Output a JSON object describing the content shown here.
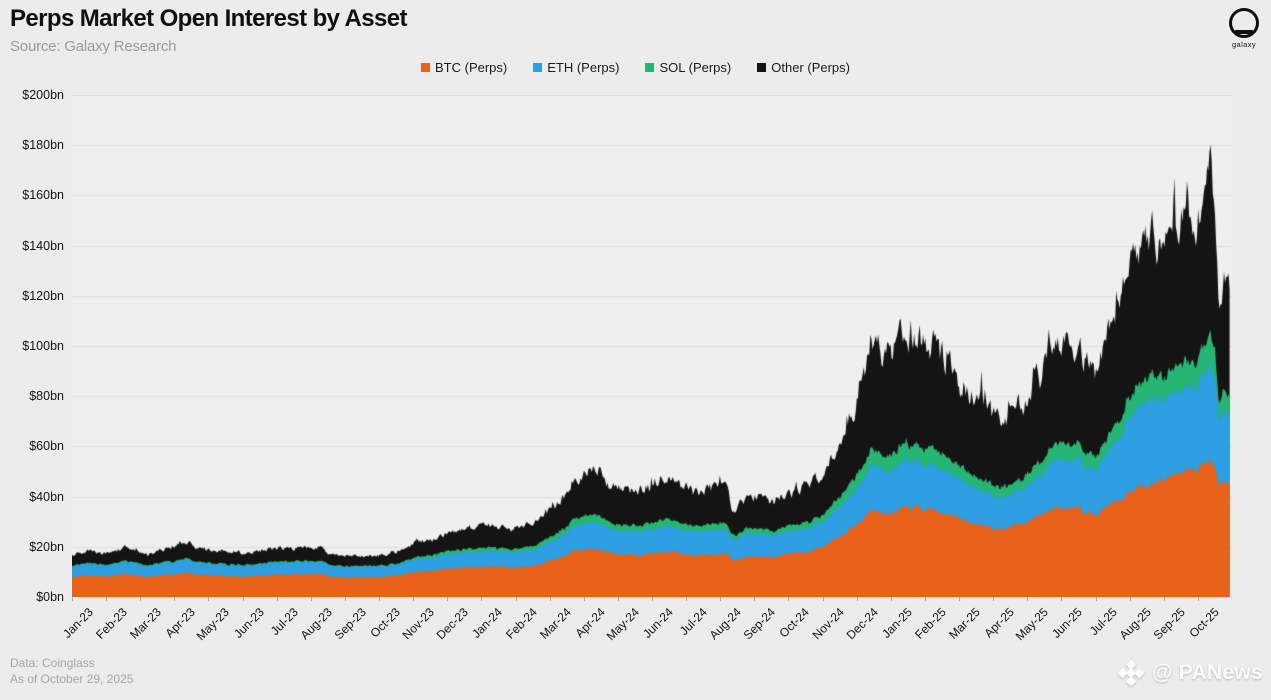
{
  "header": {
    "title": "Perps Market Open Interest by Asset",
    "source": "Source: Galaxy Research",
    "logo_label": "galaxy"
  },
  "footer": {
    "data_source": "Data: Coinglass",
    "as_of": "As of October 29, 2025"
  },
  "watermark": {
    "label": "@ PANews"
  },
  "chart_data": {
    "type": "area",
    "stacked": true,
    "title": "Perps Market Open Interest by Asset",
    "unit": "$bn",
    "ylim": [
      0,
      200
    ],
    "grid": "horizontal",
    "legend_position": "top",
    "y_tick_labels": [
      "$0bn",
      "$20bn",
      "$40bn",
      "$60bn",
      "$80bn",
      "$100bn",
      "$120bn",
      "$140bn",
      "$160bn",
      "$180bn",
      "$200bn"
    ],
    "x_tick_labels": [
      "Jan-23",
      "Feb-23",
      "Mar-23",
      "Apr-23",
      "May-23",
      "Jun-23",
      "Jul-23",
      "Aug-23",
      "Sep-23",
      "Oct-23",
      "Nov-23",
      "Dec-23",
      "Jan-24",
      "Feb-24",
      "Mar-24",
      "Apr-24",
      "May-24",
      "Jun-24",
      "Jul-24",
      "Aug-24",
      "Sep-24",
      "Oct-24",
      "Nov-24",
      "Dec-24",
      "Jan-25",
      "Feb-25",
      "Mar-25",
      "Apr-25",
      "May-25",
      "Jun-25",
      "Jul-25",
      "Aug-25",
      "Sep-25",
      "Oct-25"
    ],
    "sampling": "daily (values in $bn, anchors are months since Jan-2023, ending Oct 29 2025)",
    "anchors_x_months": [
      0,
      0.5,
      1.0,
      1.6,
      2.2,
      2.7,
      3.3,
      3.9,
      4.6,
      5.3,
      5.9,
      6.6,
      7.3,
      7.6,
      8.3,
      9.0,
      9.6,
      10.0,
      10.6,
      11.3,
      11.9,
      12.35,
      12.9,
      13.6,
      14.3,
      14.8,
      15.3,
      15.8,
      16.4,
      17.1,
      17.5,
      18.2,
      18.8,
      19.15,
      19.35,
      19.9,
      20.6,
      21.3,
      21.9,
      22.4,
      22.9,
      23.4,
      23.9,
      24.5,
      25.0,
      25.5,
      26.0,
      26.6,
      27.2,
      27.8,
      28.4,
      28.9,
      29.5,
      30.0,
      30.5,
      31.0,
      31.5,
      32.0,
      32.5,
      33.0,
      33.35,
      33.5,
      33.62,
      33.75,
      33.93
    ],
    "series": [
      {
        "name": "BTC (Perps)",
        "color": "#e8621a",
        "values": [
          8.0,
          8.6,
          8.3,
          9.0,
          8.0,
          8.7,
          9.6,
          8.9,
          8.4,
          8.1,
          8.8,
          9.1,
          9.3,
          7.9,
          7.9,
          8.1,
          8.7,
          9.9,
          10.6,
          11.6,
          11.9,
          12.3,
          11.6,
          12.7,
          15.6,
          18.6,
          19.2,
          17.1,
          16.6,
          17.6,
          18.6,
          16.6,
          17.1,
          17.6,
          14.6,
          16.1,
          15.9,
          17.6,
          19.6,
          23.1,
          28.1,
          34.0,
          33.0,
          36.0,
          35.0,
          34.0,
          31.0,
          29.0,
          27.0,
          29.0,
          33.0,
          36.0,
          35.0,
          33.0,
          37.0,
          42.0,
          44.0,
          46.0,
          50.0,
          50.0,
          55.0,
          53.0,
          44.0,
          48.0,
          46.0
        ]
      },
      {
        "name": "ETH (Perps)",
        "color": "#2d9fe2",
        "values": [
          4.2,
          4.5,
          4.4,
          4.7,
          4.3,
          4.7,
          5.1,
          4.7,
          4.4,
          4.3,
          4.6,
          4.7,
          4.8,
          4.1,
          4.0,
          4.1,
          4.3,
          4.8,
          5.2,
          5.7,
          5.9,
          6.1,
          5.8,
          6.6,
          8.1,
          10.1,
          10.6,
          9.3,
          9.1,
          9.7,
          10.3,
          9.2,
          9.6,
          10.0,
          8.1,
          9.1,
          8.7,
          9.3,
          9.9,
          11.1,
          13.6,
          18.0,
          17.0,
          19.0,
          18.0,
          17.5,
          15.5,
          14.0,
          12.5,
          13.5,
          16.0,
          19.0,
          19.5,
          18.0,
          22.0,
          30.0,
          34.0,
          32.0,
          34.0,
          33.0,
          38.0,
          36.0,
          26.0,
          30.0,
          28.0
        ]
      },
      {
        "name": "SOL (Perps)",
        "color": "#25b673",
        "values": [
          0.3,
          0.4,
          0.4,
          0.5,
          0.4,
          0.5,
          0.5,
          0.4,
          0.4,
          0.4,
          0.5,
          0.5,
          0.5,
          0.4,
          0.4,
          0.4,
          0.5,
          0.7,
          1.1,
          1.5,
          1.6,
          1.6,
          1.3,
          1.5,
          2.2,
          3.0,
          3.1,
          2.5,
          2.4,
          2.6,
          2.8,
          2.3,
          2.4,
          2.5,
          1.8,
          2.1,
          2.0,
          2.3,
          2.6,
          3.5,
          5.0,
          6.5,
          6.0,
          7.0,
          6.5,
          6.0,
          5.0,
          4.5,
          4.0,
          4.3,
          5.5,
          6.5,
          6.0,
          5.5,
          6.5,
          8.0,
          9.0,
          9.0,
          10.0,
          10.0,
          12.0,
          11.0,
          6.5,
          8.0,
          7.0
        ]
      },
      {
        "name": "Other (Perps)",
        "color": "#141414",
        "values": [
          4.0,
          4.6,
          4.3,
          5.2,
          4.3,
          5.1,
          6.3,
          5.2,
          4.9,
          4.5,
          5.2,
          5.4,
          5.7,
          3.9,
          3.8,
          4.0,
          4.7,
          5.9,
          6.4,
          7.6,
          8.1,
          8.6,
          7.7,
          9.2,
          12.3,
          16.3,
          19.0,
          14.6,
          13.9,
          15.6,
          17.6,
          13.6,
          14.4,
          15.1,
          10.6,
          12.6,
          12.1,
          13.6,
          15.6,
          19.2,
          27.2,
          42.0,
          38.5,
          46.0,
          42.0,
          40.0,
          34.0,
          30.0,
          26.5,
          29.0,
          35.0,
          40.0,
          38.0,
          35.0,
          42.0,
          52.0,
          55.0,
          53.0,
          58.0,
          55.0,
          63.0,
          60.0,
          38.0,
          47.0,
          43.0
        ]
      }
    ]
  }
}
